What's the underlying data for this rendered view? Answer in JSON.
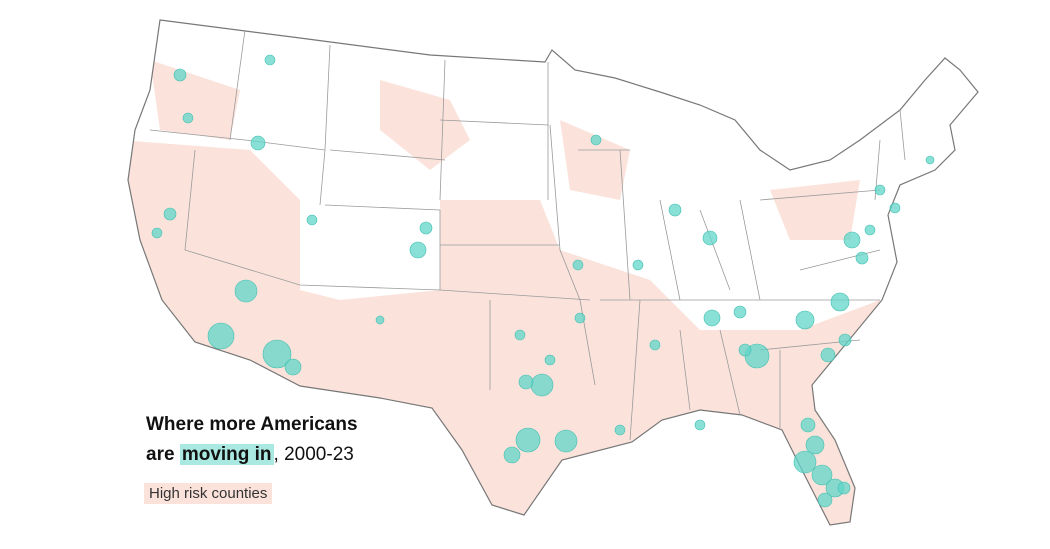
{
  "title": {
    "line1": "Where more Americans",
    "line2_prefix": "are",
    "highlight": "moving in",
    "line2_suffix": ", 2000-23"
  },
  "legend": {
    "label": "High risk counties"
  }
}
